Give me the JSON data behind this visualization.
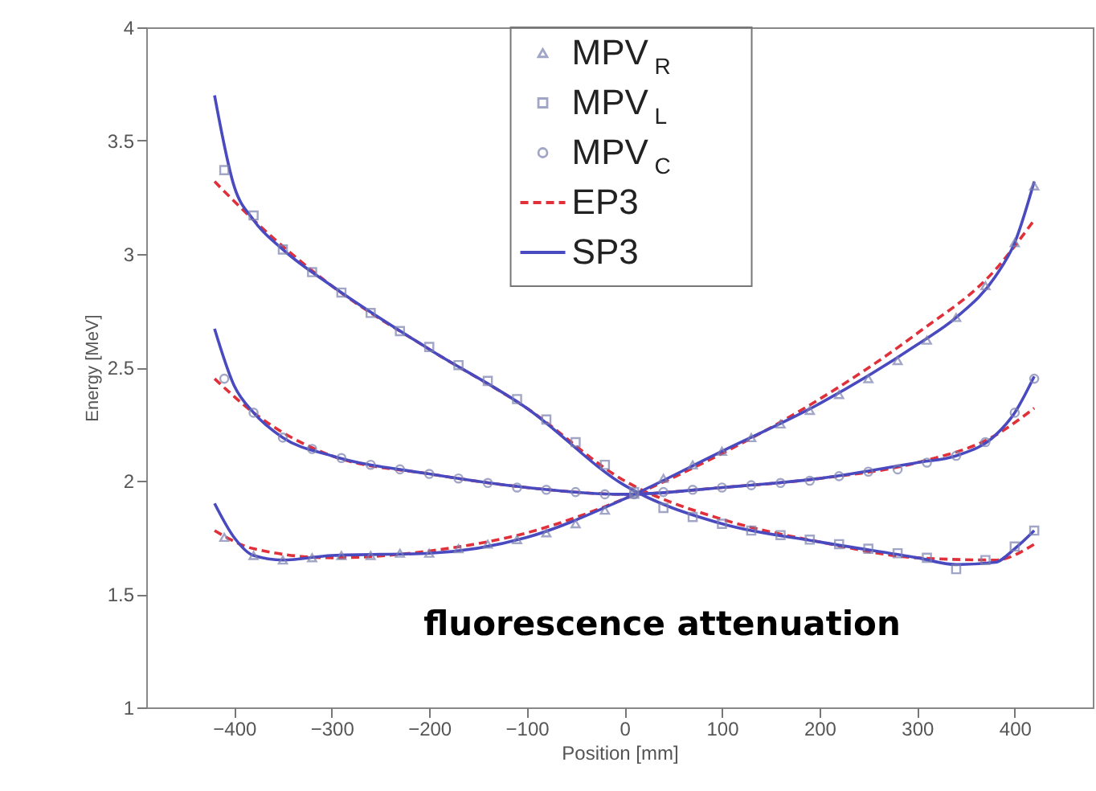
{
  "chart_data": {
    "type": "scatter",
    "xlabel": "Position [mm]",
    "ylabel": "Energy [MeV]",
    "xlim": [
      -490,
      480
    ],
    "ylim": [
      1,
      4
    ],
    "xticks": [
      -400,
      -300,
      -200,
      -100,
      0,
      100,
      200,
      300,
      400
    ],
    "yticks": [
      1,
      1.5,
      2,
      2.5,
      3,
      3.5,
      4
    ],
    "grid": false,
    "legend": "top",
    "annotations": [
      "fluorescence attenuation"
    ],
    "series": [
      {
        "name": "MPV$_{R}$",
        "marker": "triangle",
        "color": "#7a7fae",
        "x": [
          -410,
          -380,
          -350,
          -320,
          -290,
          -260,
          -230,
          -200,
          -170,
          -140,
          -110,
          -80,
          -50,
          -20,
          10,
          40,
          70,
          100,
          130,
          160,
          190,
          220,
          250,
          280,
          310,
          340,
          370,
          400,
          420
        ],
        "values": [
          1.75,
          1.67,
          1.65,
          1.66,
          1.67,
          1.67,
          1.68,
          1.68,
          1.7,
          1.72,
          1.74,
          1.77,
          1.81,
          1.87,
          1.94,
          2.01,
          2.07,
          2.13,
          2.19,
          2.25,
          2.31,
          2.38,
          2.45,
          2.53,
          2.62,
          2.72,
          2.86,
          3.05,
          3.3
        ]
      },
      {
        "name": "MPV$_{L}$",
        "marker": "square",
        "color": "#7a7fae",
        "x": [
          -410,
          -380,
          -350,
          -320,
          -290,
          -260,
          -230,
          -200,
          -170,
          -140,
          -110,
          -80,
          -50,
          -20,
          10,
          40,
          70,
          100,
          130,
          160,
          190,
          220,
          250,
          280,
          310,
          340,
          370,
          400,
          420
        ],
        "values": [
          3.37,
          3.17,
          3.02,
          2.92,
          2.83,
          2.74,
          2.66,
          2.59,
          2.51,
          2.44,
          2.36,
          2.27,
          2.17,
          2.07,
          1.95,
          1.88,
          1.84,
          1.81,
          1.78,
          1.76,
          1.74,
          1.72,
          1.7,
          1.68,
          1.66,
          1.61,
          1.65,
          1.71,
          1.78
        ]
      },
      {
        "name": "MPV$_{C}$",
        "marker": "circle",
        "color": "#7a7fae",
        "x": [
          -410,
          -380,
          -350,
          -320,
          -290,
          -260,
          -230,
          -200,
          -170,
          -140,
          -110,
          -80,
          -50,
          -20,
          10,
          40,
          70,
          100,
          130,
          160,
          190,
          220,
          250,
          280,
          310,
          340,
          370,
          400,
          420
        ],
        "values": [
          2.45,
          2.3,
          2.19,
          2.14,
          2.1,
          2.07,
          2.05,
          2.03,
          2.01,
          1.99,
          1.97,
          1.96,
          1.95,
          1.94,
          1.94,
          1.95,
          1.96,
          1.97,
          1.98,
          1.99,
          2.0,
          2.02,
          2.04,
          2.05,
          2.08,
          2.11,
          2.17,
          2.3,
          2.45
        ]
      },
      {
        "name": "EP3",
        "type": "line",
        "line_style": "dashed",
        "color": "#e0303a",
        "x": [
          -420,
          -380,
          -300,
          -200,
          -100,
          0,
          100,
          200,
          300,
          380,
          420
        ],
        "values": [
          1.78,
          1.7,
          1.66,
          1.69,
          1.77,
          1.92,
          2.12,
          2.36,
          2.65,
          2.93,
          3.15
        ]
      },
      {
        "type": "line",
        "line_style": "dashed",
        "color": "#e0303a",
        "x": [
          -420,
          -380,
          -300,
          -200,
          -100,
          0,
          100,
          200,
          300,
          380,
          420
        ],
        "values": [
          3.32,
          3.15,
          2.86,
          2.58,
          2.32,
          2.0,
          1.83,
          1.73,
          1.66,
          1.65,
          1.72
        ]
      },
      {
        "type": "line",
        "line_style": "dashed",
        "color": "#e0303a",
        "x": [
          -420,
          -380,
          -300,
          -200,
          -100,
          0,
          100,
          200,
          300,
          380,
          420
        ],
        "values": [
          2.45,
          2.3,
          2.11,
          2.03,
          1.97,
          1.94,
          1.97,
          2.01,
          2.08,
          2.2,
          2.32
        ]
      },
      {
        "name": "SP3",
        "type": "line",
        "line_style": "solid",
        "color": "#4a4ac0",
        "x": [
          -420,
          -400,
          -380,
          -350,
          -300,
          -200,
          -100,
          0,
          100,
          200,
          300,
          340,
          380,
          400,
          420
        ],
        "values": [
          1.9,
          1.75,
          1.67,
          1.65,
          1.67,
          1.68,
          1.75,
          1.92,
          2.13,
          2.34,
          2.6,
          2.72,
          2.9,
          3.05,
          3.32
        ]
      },
      {
        "type": "line",
        "line_style": "solid",
        "color": "#4a4ac0",
        "x": [
          -420,
          -400,
          -380,
          -350,
          -300,
          -200,
          -100,
          0,
          100,
          200,
          300,
          340,
          380,
          400,
          420
        ],
        "values": [
          3.7,
          3.3,
          3.15,
          3.02,
          2.86,
          2.58,
          2.32,
          1.98,
          1.81,
          1.73,
          1.66,
          1.63,
          1.64,
          1.7,
          1.78
        ]
      },
      {
        "type": "line",
        "line_style": "solid",
        "color": "#4a4ac0",
        "x": [
          -420,
          -400,
          -380,
          -350,
          -300,
          -200,
          -100,
          0,
          100,
          200,
          300,
          340,
          380,
          400,
          420
        ],
        "values": [
          2.67,
          2.42,
          2.3,
          2.19,
          2.11,
          2.03,
          1.97,
          1.94,
          1.97,
          2.01,
          2.08,
          2.11,
          2.2,
          2.3,
          2.46
        ]
      }
    ]
  }
}
